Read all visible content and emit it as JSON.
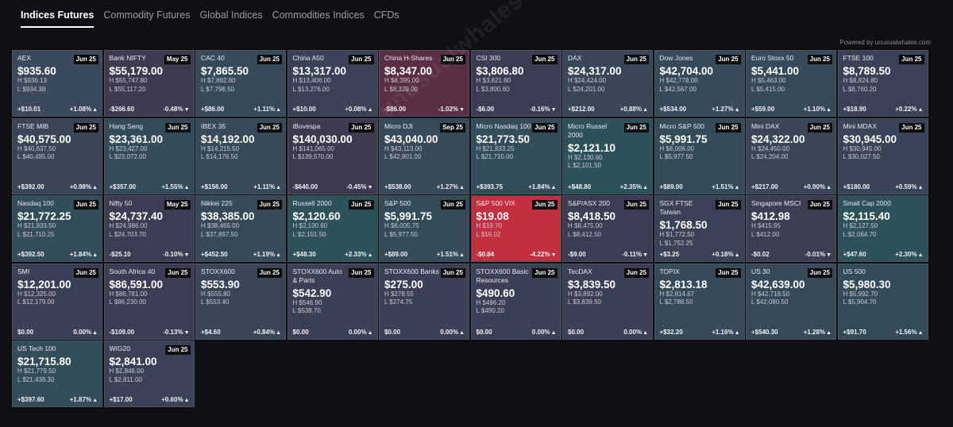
{
  "tabs": [
    "Indices Futures",
    "Commodity Futures",
    "Global Indices",
    "Commodities Indices",
    "CFDs"
  ],
  "powered_by": "Powered by unusualwhales.com",
  "watermark": "unusualwhales.com",
  "tiles": [
    {
      "name": "AEX",
      "exp": "Jun 25",
      "price": "$935.60",
      "high": "H $936.13",
      "low": "L $934.38",
      "chg": "+$10.01",
      "pct": "+1.08%",
      "dir": "up",
      "bg": "#3a4a5c"
    },
    {
      "name": "Bank NIFTY",
      "exp": "May 25",
      "price": "$55,179.00",
      "high": "H $55,747.80",
      "low": "L $55,117.20",
      "chg": "-$266.60",
      "pct": "-0.48%",
      "dir": "down",
      "bg": "#3e3a50"
    },
    {
      "name": "CAC 40",
      "exp": "Jun 25",
      "price": "$7,865.50",
      "high": "H $7,882.60",
      "low": "L $7,798.50",
      "chg": "+$86.00",
      "pct": "+1.11%",
      "dir": "up",
      "bg": "#364a5a"
    },
    {
      "name": "China A50",
      "exp": "Jun 25",
      "price": "$13,317.00",
      "high": "H $13,406.00",
      "low": "L $13,276.00",
      "chg": "+$10.00",
      "pct": "+0.08%",
      "dir": "up",
      "bg": "#3a4258"
    },
    {
      "name": "China H-Shares",
      "exp": "Jun 25",
      "price": "$8,347.00",
      "high": "H $8,395.00",
      "low": "L $8,329.00",
      "chg": "-$86.00",
      "pct": "-1.02%",
      "dir": "down",
      "bg": "#5a2e48"
    },
    {
      "name": "CSI 300",
      "exp": "Jun 25",
      "price": "$3,806.80",
      "high": "H $3,821.60",
      "low": "L $3,800.60",
      "chg": "-$6.00",
      "pct": "-0.16%",
      "dir": "down",
      "bg": "#3c3c54"
    },
    {
      "name": "DAX",
      "exp": "Jun 25",
      "price": "$24,317.00",
      "high": "H $24,424.00",
      "low": "L $24,201.00",
      "chg": "+$212.00",
      "pct": "+0.88%",
      "dir": "up",
      "bg": "#384658"
    },
    {
      "name": "Dow Jones",
      "exp": "Jun 25",
      "price": "$42,704.00",
      "high": "H $42,778.00",
      "low": "L $42,567.00",
      "chg": "+$534.00",
      "pct": "+1.27%",
      "dir": "up",
      "bg": "#364a5a"
    },
    {
      "name": "Euro Stoxx 50",
      "exp": "Jun 25",
      "price": "$5,441.00",
      "high": "H $5,463.00",
      "low": "L $5,415.00",
      "chg": "+$59.00",
      "pct": "+1.10%",
      "dir": "up",
      "bg": "#364a5a"
    },
    {
      "name": "FTSE 100",
      "exp": "Jun 25",
      "price": "$8,789.50",
      "high": "H $8,824.80",
      "low": "L $8,760.20",
      "chg": "+$18.90",
      "pct": "+0.22%",
      "dir": "up",
      "bg": "#3a4258"
    },
    {
      "name": "FTSE MIB",
      "exp": "Jun 25",
      "price": "$40,575.00",
      "high": "H $40,637.50",
      "low": "L $40,495.00",
      "chg": "+$392.00",
      "pct": "+0.98%",
      "dir": "up",
      "bg": "#384658"
    },
    {
      "name": "Hang Seng",
      "exp": "Jun 25",
      "price": "$23,361.00",
      "high": "H $23,427.00",
      "low": "L $23,072.00",
      "chg": "+$357.00",
      "pct": "+1.55%",
      "dir": "up",
      "bg": "#344c5a"
    },
    {
      "name": "IBEX 35",
      "exp": "Jun 25",
      "price": "$14,192.00",
      "high": "H $14,215.50",
      "low": "L $14,176.50",
      "chg": "+$156.00",
      "pct": "+1.11%",
      "dir": "up",
      "bg": "#364a5a"
    },
    {
      "name": "iBovespa",
      "exp": "Jun 25",
      "price": "$140,030.00",
      "high": "H $141,065.00",
      "low": "L $139,570.00",
      "chg": "-$640.00",
      "pct": "-0.45%",
      "dir": "down",
      "bg": "#3e3a50"
    },
    {
      "name": "Micro DJI",
      "exp": "Sep 25",
      "price": "$43,040.00",
      "high": "H $43,113.00",
      "low": "L $42,901.00",
      "chg": "+$538.00",
      "pct": "+1.27%",
      "dir": "up",
      "bg": "#364a5a"
    },
    {
      "name": "Micro Nasdaq 100",
      "exp": "Jun 25",
      "price": "$21,773.50",
      "high": "H $21,833.25",
      "low": "L $21,710.00",
      "chg": "+$393.75",
      "pct": "+1.84%",
      "dir": "up",
      "bg": "#324e5a"
    },
    {
      "name": "Micro Russel 2000",
      "exp": "Jun 25",
      "price": "$2,121.10",
      "high": "H $2,130.60",
      "low": "L $2,101.50",
      "chg": "+$48.80",
      "pct": "+2.35%",
      "dir": "up",
      "bg": "#2e525a"
    },
    {
      "name": "Micro S&P 500",
      "exp": "Jun 25",
      "price": "$5,991.75",
      "high": "H $6,006.00",
      "low": "L $5,977.50",
      "chg": "+$89.00",
      "pct": "+1.51%",
      "dir": "up",
      "bg": "#344c5a"
    },
    {
      "name": "Mini DAX",
      "exp": "Jun 25",
      "price": "$24,322.00",
      "high": "H $24,450.00",
      "low": "L $24,204.00",
      "chg": "+$217.00",
      "pct": "+0.90%",
      "dir": "up",
      "bg": "#384658"
    },
    {
      "name": "Mini MDAX",
      "exp": "Jun 25",
      "price": "$30,945.00",
      "high": "H $30,945.00",
      "low": "L $30,027.50",
      "chg": "+$180.00",
      "pct": "+0.59%",
      "dir": "up",
      "bg": "#3a4458"
    },
    {
      "name": "Nasdaq 100",
      "exp": "Jun 25",
      "price": "$21,772.25",
      "high": "H $21,833.50",
      "low": "L $21,710.25",
      "chg": "+$392.50",
      "pct": "+1.84%",
      "dir": "up",
      "bg": "#324e5a"
    },
    {
      "name": "Nifty 50",
      "exp": "May 25",
      "price": "$24,737.40",
      "high": "H $24,986.00",
      "low": "L $24,703.70",
      "chg": "-$25.10",
      "pct": "-0.10%",
      "dir": "down",
      "bg": "#3c3c54"
    },
    {
      "name": "Nikkei 225",
      "exp": "Jun 25",
      "price": "$38,385.00",
      "high": "H $38,465.00",
      "low": "L $37,897.50",
      "chg": "+$452.50",
      "pct": "+1.19%",
      "dir": "up",
      "bg": "#364a5a"
    },
    {
      "name": "Russell 2000",
      "exp": "Jun 25",
      "price": "$2,120.60",
      "high": "H $2,130.60",
      "low": "L $2,101.50",
      "chg": "+$48.30",
      "pct": "+2.33%",
      "dir": "up",
      "bg": "#2e525a"
    },
    {
      "name": "S&P 500",
      "exp": "Jun 25",
      "price": "$5,991.75",
      "high": "H $6,005.75",
      "low": "L $5,977.50",
      "chg": "+$89.00",
      "pct": "+1.51%",
      "dir": "up",
      "bg": "#344c5a"
    },
    {
      "name": "S&P 500 VIX",
      "exp": "Jun 25",
      "price": "$19.08",
      "high": "H $19.70",
      "low": "L $19.02",
      "chg": "-$0.84",
      "pct": "-4.22%",
      "dir": "down",
      "bg": "#c32f3e"
    },
    {
      "name": "S&P/ASX 200",
      "exp": "Jun 25",
      "price": "$8,418.50",
      "high": "H $8,475.00",
      "low": "L $8,412.50",
      "chg": "-$9.00",
      "pct": "-0.11%",
      "dir": "down",
      "bg": "#3c3c54"
    },
    {
      "name": "SGX FTSE Taiwan",
      "exp": "Jun 25",
      "price": "$1,768.50",
      "high": "H $1,772.50",
      "low": "L $1,752.25",
      "chg": "+$3.25",
      "pct": "+0.18%",
      "dir": "up",
      "bg": "#3a4258"
    },
    {
      "name": "Singapore MSCI",
      "exp": "Jun 25",
      "price": "$412.98",
      "high": "H $415.95",
      "low": "L $412.00",
      "chg": "-$0.02",
      "pct": "-0.01%",
      "dir": "down",
      "bg": "#3c3e54"
    },
    {
      "name": "Small Cap 2000",
      "exp": "",
      "price": "$2,115.40",
      "high": "H $2,127.50",
      "low": "L $2,064.70",
      "chg": "+$47.60",
      "pct": "+2.30%",
      "dir": "up",
      "bg": "#2e525a"
    },
    {
      "name": "SMI",
      "exp": "Jun 25",
      "price": "$12,201.00",
      "high": "H $12,325.00",
      "low": "L $12,179.00",
      "chg": "$0.00",
      "pct": "0.00%",
      "dir": "up",
      "bg": "#3c4056"
    },
    {
      "name": "South Africa 40",
      "exp": "Jun 25",
      "price": "$86,591.00",
      "high": "H $86,781.00",
      "low": "L $86,230.00",
      "chg": "-$109.00",
      "pct": "-0.13%",
      "dir": "down",
      "bg": "#3c3c54"
    },
    {
      "name": "STOXX600",
      "exp": "Jun 25",
      "price": "$553.90",
      "high": "H $555.80",
      "low": "L $553.40",
      "chg": "+$4.60",
      "pct": "+0.84%",
      "dir": "up",
      "bg": "#384658"
    },
    {
      "name": "STOXX600 Auto & Parts",
      "exp": "Jun 25",
      "price": "$542.90",
      "high": "H $546.90",
      "low": "L $538.70",
      "chg": "$0.00",
      "pct": "0.00%",
      "dir": "up",
      "bg": "#3c4056"
    },
    {
      "name": "STOXX600 Banks",
      "exp": "Jun 25",
      "price": "$275.00",
      "high": "H $278.55",
      "low": "L $274.75",
      "chg": "$0.00",
      "pct": "0.00%",
      "dir": "up",
      "bg": "#3c4056"
    },
    {
      "name": "STOXX600 Basic Resources",
      "exp": "Jun 25",
      "price": "$490.60",
      "high": "H $496.20",
      "low": "L $490.20",
      "chg": "$0.00",
      "pct": "0.00%",
      "dir": "up",
      "bg": "#3c4056"
    },
    {
      "name": "TecDAX",
      "exp": "Jun 25",
      "price": "$3,839.50",
      "high": "H $3,892.00",
      "low": "L $3,839.50",
      "chg": "$0.00",
      "pct": "0.00%",
      "dir": "up",
      "bg": "#3c4056"
    },
    {
      "name": "TOPIX",
      "exp": "Jun 25",
      "price": "$2,813.18",
      "high": "H $2,814.67",
      "low": "L $2,788.50",
      "chg": "+$32.20",
      "pct": "+1.16%",
      "dir": "up",
      "bg": "#364a5a"
    },
    {
      "name": "US 30",
      "exp": "Jun 25",
      "price": "$42,639.00",
      "high": "H $42,718.50",
      "low": "L $42,080.50",
      "chg": "+$540.30",
      "pct": "+1.28%",
      "dir": "up",
      "bg": "#364a5a"
    },
    {
      "name": "US 500",
      "exp": "",
      "price": "$5,980.30",
      "high": "H $5,992.70",
      "low": "L $5,904.70",
      "chg": "+$91.70",
      "pct": "+1.56%",
      "dir": "up",
      "bg": "#344c5a"
    },
    {
      "name": "US Tech 100",
      "exp": "",
      "price": "$21,715.80",
      "high": "H $21,779.50",
      "low": "L $21,438.30",
      "chg": "+$397.60",
      "pct": "+1.87%",
      "dir": "up",
      "bg": "#324e5a"
    },
    {
      "name": "WIG20",
      "exp": "Jun 25",
      "price": "$2,841.00",
      "high": "H $2,846.00",
      "low": "L $2,811.00",
      "chg": "+$17.00",
      "pct": "+0.60%",
      "dir": "up",
      "bg": "#3a4258"
    }
  ]
}
